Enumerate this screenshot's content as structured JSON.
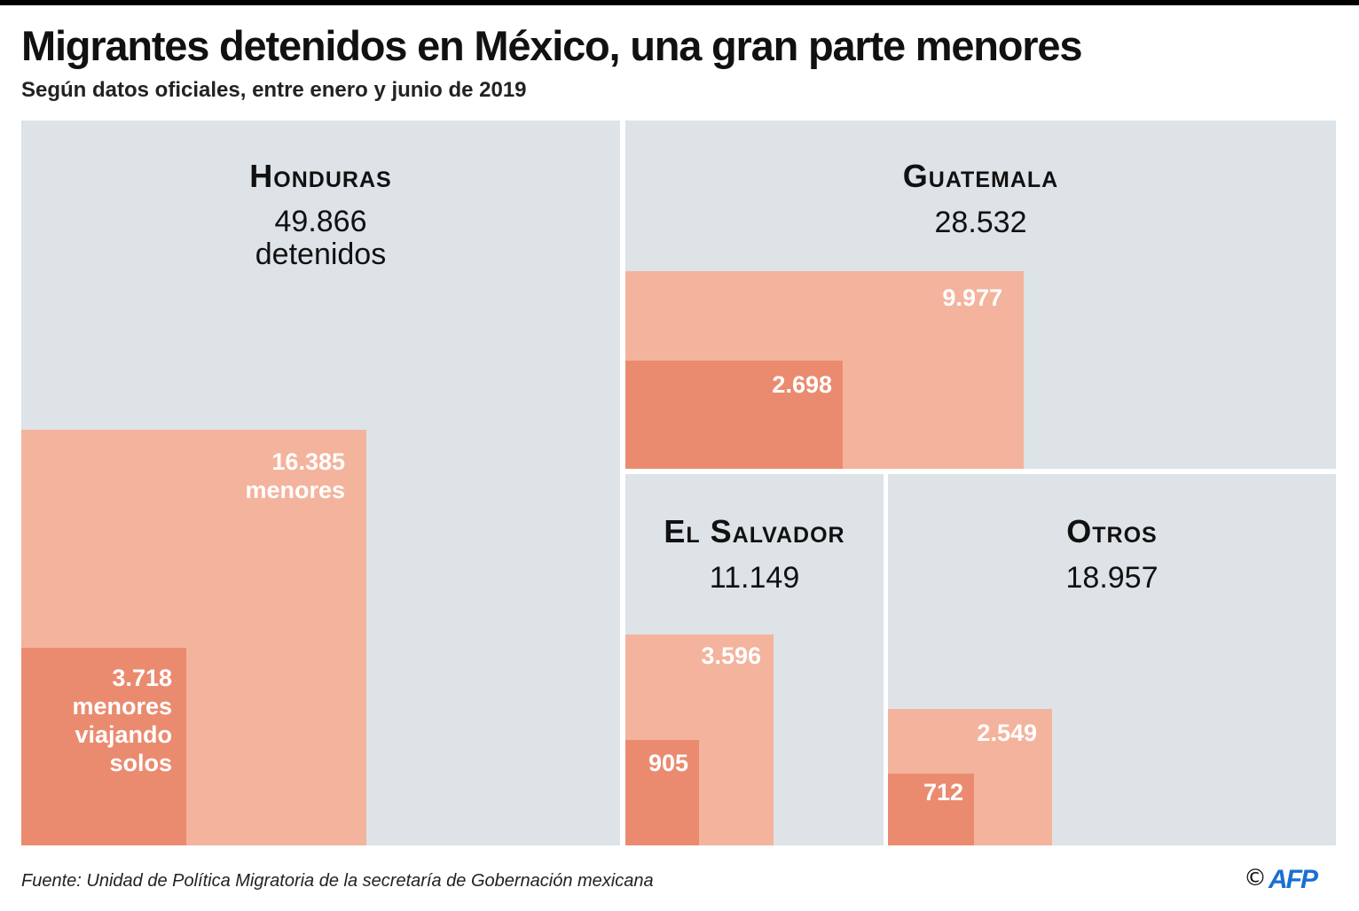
{
  "title": "Migrantes detenidos en México, una gran parte menores",
  "subtitle": "Según datos oficiales, entre enero y junio de 2019",
  "source": "Fuente: Unidad de Política Migratoria de la secretaría de Gobernación mexicana",
  "credit": {
    "symbol": "©",
    "logo": "AFP"
  },
  "colors": {
    "total": "#dde3e6",
    "minors": "#f4b39c",
    "unaccompanied": "#ea8b70",
    "logo": "#1a6fd1"
  },
  "chart_data": {
    "type": "treemap",
    "cells": [
      {
        "country": "Honduras",
        "total": "49.866",
        "total_unit": "detenidos",
        "minors": "16.385",
        "minors_unit": "menores",
        "unaccompanied": "3.718",
        "unaccompanied_unit": "menores viajando solos",
        "values": {
          "total": 49866,
          "minors": 16385,
          "unaccompanied": 3718
        }
      },
      {
        "country": "Guatemala",
        "total": "28.532",
        "minors": "9.977",
        "unaccompanied": "2.698",
        "values": {
          "total": 28532,
          "minors": 9977,
          "unaccompanied": 2698
        }
      },
      {
        "country": "El Salvador",
        "total": "11.149",
        "minors": "3.596",
        "unaccompanied": "905",
        "values": {
          "total": 11149,
          "minors": 3596,
          "unaccompanied": 905
        }
      },
      {
        "country": "Otros",
        "total": "18.957",
        "minors": "2.549",
        "unaccompanied": "712",
        "values": {
          "total": 18957,
          "minors": 2549,
          "unaccompanied": 712
        }
      }
    ]
  }
}
